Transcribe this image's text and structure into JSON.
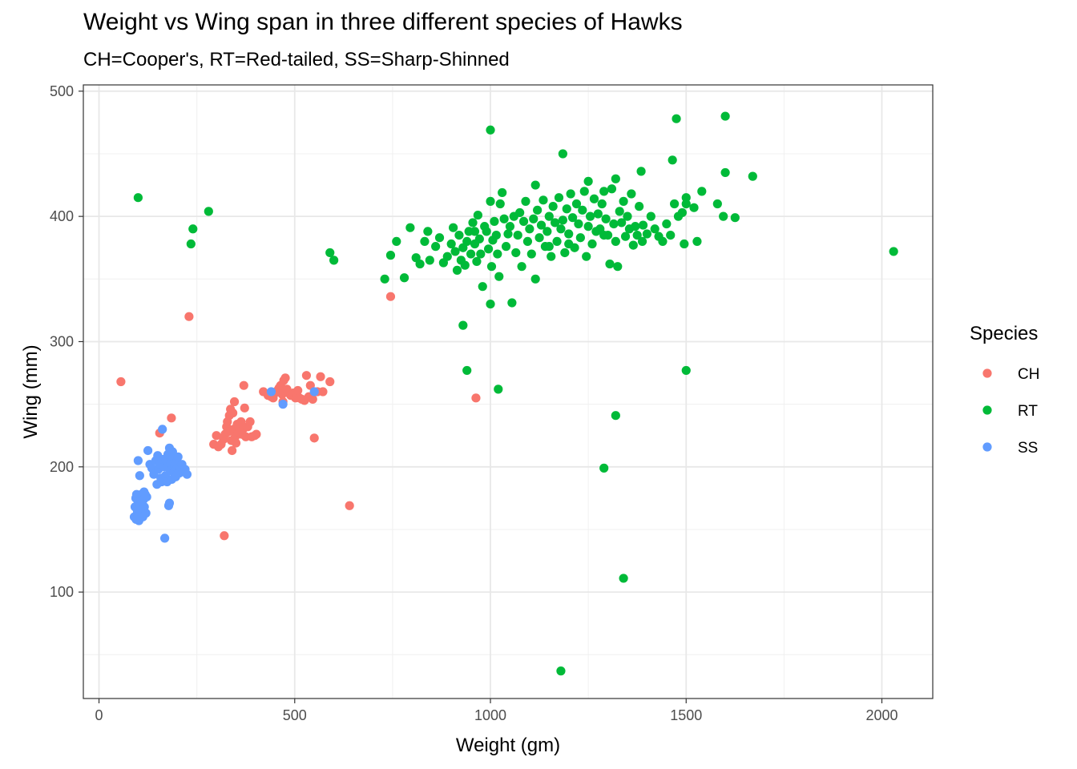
{
  "chart_data": {
    "type": "scatter",
    "title": "Weight vs Wing span in three different species of Hawks",
    "subtitle": "CH=Cooper's, RT=Red-tailed, SS=Sharp-Shinned",
    "xlabel": "Weight (gm)",
    "ylabel": "Wing (mm)",
    "xlim": [
      -40,
      2130
    ],
    "ylim": [
      15,
      505
    ],
    "x_ticks": [
      0,
      500,
      1000,
      1500,
      2000
    ],
    "y_ticks": [
      100,
      200,
      300,
      400,
      500
    ],
    "grid": true,
    "legend": {
      "title": "Species",
      "position": "right"
    },
    "series": [
      {
        "name": "CH",
        "color": "#F8766D",
        "points": [
          [
            56,
            268
          ],
          [
            230,
            320
          ],
          [
            745,
            336
          ],
          [
            963,
            255
          ],
          [
            640,
            169
          ],
          [
            320,
            145
          ],
          [
            155,
            227
          ],
          [
            185,
            239
          ],
          [
            293,
            218
          ],
          [
            300,
            225
          ],
          [
            305,
            216
          ],
          [
            312,
            218
          ],
          [
            318,
            222
          ],
          [
            322,
            226
          ],
          [
            326,
            232
          ],
          [
            328,
            236
          ],
          [
            330,
            228
          ],
          [
            333,
            241
          ],
          [
            336,
            246
          ],
          [
            338,
            221
          ],
          [
            340,
            213
          ],
          [
            342,
            243
          ],
          [
            344,
            230
          ],
          [
            346,
            252
          ],
          [
            348,
            224
          ],
          [
            350,
            219
          ],
          [
            353,
            234
          ],
          [
            356,
            228
          ],
          [
            360,
            231
          ],
          [
            363,
            236
          ],
          [
            365,
            226
          ],
          [
            368,
            230
          ],
          [
            370,
            265
          ],
          [
            372,
            247
          ],
          [
            375,
            224
          ],
          [
            380,
            232
          ],
          [
            386,
            236
          ],
          [
            390,
            224
          ],
          [
            398,
            225
          ],
          [
            402,
            226
          ],
          [
            420,
            260
          ],
          [
            432,
            257
          ],
          [
            440,
            256
          ],
          [
            445,
            255
          ],
          [
            450,
            259
          ],
          [
            456,
            261
          ],
          [
            460,
            263
          ],
          [
            464,
            265
          ],
          [
            468,
            258
          ],
          [
            470,
            252
          ],
          [
            472,
            269
          ],
          [
            476,
            271
          ],
          [
            480,
            262
          ],
          [
            484,
            259
          ],
          [
            490,
            257
          ],
          [
            496,
            259
          ],
          [
            502,
            255
          ],
          [
            505,
            258
          ],
          [
            508,
            261
          ],
          [
            512,
            255
          ],
          [
            518,
            254
          ],
          [
            525,
            253
          ],
          [
            530,
            273
          ],
          [
            536,
            256
          ],
          [
            540,
            265
          ],
          [
            546,
            254
          ],
          [
            550,
            223
          ],
          [
            558,
            260
          ],
          [
            566,
            272
          ],
          [
            572,
            260
          ],
          [
            590,
            268
          ],
          [
            358,
            228
          ]
        ]
      },
      {
        "name": "RT",
        "color": "#00BA38",
        "points": [
          [
            100,
            415
          ],
          [
            280,
            404
          ],
          [
            240,
            390
          ],
          [
            235,
            378
          ],
          [
            1000,
            469
          ],
          [
            1185,
            450
          ],
          [
            1475,
            478
          ],
          [
            1600,
            480
          ],
          [
            1115,
            425
          ],
          [
            1250,
            428
          ],
          [
            1320,
            430
          ],
          [
            1385,
            436
          ],
          [
            1465,
            445
          ],
          [
            1500,
            415
          ],
          [
            1540,
            420
          ],
          [
            1580,
            410
          ],
          [
            1600,
            435
          ],
          [
            1670,
            432
          ],
          [
            1595,
            400
          ],
          [
            1625,
            399
          ],
          [
            1528,
            380
          ],
          [
            1495,
            378
          ],
          [
            1388,
            380
          ],
          [
            2030,
            372
          ],
          [
            730,
            350
          ],
          [
            745,
            369
          ],
          [
            760,
            380
          ],
          [
            780,
            351
          ],
          [
            795,
            391
          ],
          [
            810,
            367
          ],
          [
            820,
            362
          ],
          [
            832,
            380
          ],
          [
            845,
            365
          ],
          [
            860,
            376
          ],
          [
            870,
            383
          ],
          [
            880,
            363
          ],
          [
            890,
            368
          ],
          [
            900,
            378
          ],
          [
            905,
            391
          ],
          [
            910,
            372
          ],
          [
            915,
            357
          ],
          [
            920,
            385
          ],
          [
            925,
            365
          ],
          [
            930,
            375
          ],
          [
            935,
            361
          ],
          [
            940,
            380
          ],
          [
            945,
            388
          ],
          [
            950,
            370
          ],
          [
            955,
            395
          ],
          [
            960,
            378
          ],
          [
            965,
            364
          ],
          [
            968,
            401
          ],
          [
            972,
            382
          ],
          [
            975,
            370
          ],
          [
            980,
            344
          ],
          [
            985,
            392
          ],
          [
            990,
            388
          ],
          [
            995,
            374
          ],
          [
            1000,
            412
          ],
          [
            1003,
            360
          ],
          [
            1006,
            381
          ],
          [
            1010,
            396
          ],
          [
            1015,
            385
          ],
          [
            1018,
            370
          ],
          [
            1022,
            352
          ],
          [
            1025,
            410
          ],
          [
            1030,
            419
          ],
          [
            1035,
            398
          ],
          [
            1040,
            376
          ],
          [
            1045,
            386
          ],
          [
            1050,
            392
          ],
          [
            1055,
            331
          ],
          [
            1060,
            400
          ],
          [
            1065,
            371
          ],
          [
            1070,
            385
          ],
          [
            1075,
            403
          ],
          [
            1080,
            360
          ],
          [
            1085,
            396
          ],
          [
            1090,
            412
          ],
          [
            1095,
            380
          ],
          [
            1100,
            390
          ],
          [
            1105,
            370
          ],
          [
            1110,
            398
          ],
          [
            1115,
            350
          ],
          [
            1120,
            405
          ],
          [
            1125,
            383
          ],
          [
            1130,
            393
          ],
          [
            1135,
            413
          ],
          [
            1140,
            376
          ],
          [
            1145,
            388
          ],
          [
            1150,
            400
          ],
          [
            1155,
            368
          ],
          [
            1160,
            408
          ],
          [
            1165,
            395
          ],
          [
            1170,
            380
          ],
          [
            1175,
            415
          ],
          [
            1180,
            390
          ],
          [
            1185,
            397
          ],
          [
            1190,
            371
          ],
          [
            1195,
            406
          ],
          [
            1200,
            386
          ],
          [
            1205,
            418
          ],
          [
            1210,
            399
          ],
          [
            1215,
            375
          ],
          [
            1220,
            410
          ],
          [
            1225,
            394
          ],
          [
            1230,
            383
          ],
          [
            1235,
            405
          ],
          [
            1240,
            420
          ],
          [
            1245,
            368
          ],
          [
            1250,
            392
          ],
          [
            1255,
            400
          ],
          [
            1260,
            378
          ],
          [
            1265,
            414
          ],
          [
            1270,
            388
          ],
          [
            1275,
            402
          ],
          [
            1280,
            390
          ],
          [
            1285,
            410
          ],
          [
            1290,
            420
          ],
          [
            1295,
            398
          ],
          [
            1300,
            385
          ],
          [
            1305,
            362
          ],
          [
            1310,
            422
          ],
          [
            1315,
            394
          ],
          [
            1320,
            380
          ],
          [
            1325,
            360
          ],
          [
            1330,
            404
          ],
          [
            1335,
            395
          ],
          [
            1340,
            412
          ],
          [
            1345,
            384
          ],
          [
            1350,
            400
          ],
          [
            1355,
            390
          ],
          [
            1360,
            418
          ],
          [
            1365,
            377
          ],
          [
            1370,
            392
          ],
          [
            1375,
            385
          ],
          [
            1380,
            408
          ],
          [
            1390,
            393
          ],
          [
            1400,
            386
          ],
          [
            1410,
            400
          ],
          [
            1420,
            390
          ],
          [
            1430,
            384
          ],
          [
            1440,
            380
          ],
          [
            1450,
            394
          ],
          [
            1460,
            385
          ],
          [
            1470,
            410
          ],
          [
            1480,
            400
          ],
          [
            1490,
            403
          ],
          [
            1500,
            410
          ],
          [
            1520,
            407
          ],
          [
            600,
            365
          ],
          [
            590,
            371
          ],
          [
            840,
            388
          ],
          [
            960,
            388
          ],
          [
            1150,
            376
          ],
          [
            1200,
            378
          ],
          [
            1290,
            385
          ],
          [
            930,
            313
          ],
          [
            940,
            277
          ],
          [
            1020,
            262
          ],
          [
            1000,
            330
          ],
          [
            1500,
            277
          ],
          [
            1320,
            241
          ],
          [
            1290,
            199
          ],
          [
            1340,
            111
          ],
          [
            1180,
            37
          ]
        ]
      },
      {
        "name": "SS",
        "color": "#619CFF",
        "points": [
          [
            90,
            160
          ],
          [
            92,
            168
          ],
          [
            94,
            175
          ],
          [
            96,
            178
          ],
          [
            98,
            163
          ],
          [
            100,
            205
          ],
          [
            100,
            172
          ],
          [
            102,
            157
          ],
          [
            104,
            193
          ],
          [
            106,
            170
          ],
          [
            108,
            178
          ],
          [
            110,
            165
          ],
          [
            112,
            160
          ],
          [
            114,
            174
          ],
          [
            116,
            168
          ],
          [
            118,
            178
          ],
          [
            120,
            163
          ],
          [
            122,
            176
          ],
          [
            125,
            213
          ],
          [
            130,
            202
          ],
          [
            135,
            199
          ],
          [
            140,
            194
          ],
          [
            145,
            205
          ],
          [
            148,
            186
          ],
          [
            150,
            209
          ],
          [
            152,
            198
          ],
          [
            155,
            202
          ],
          [
            158,
            191
          ],
          [
            160,
            188
          ],
          [
            162,
            230
          ],
          [
            164,
            206
          ],
          [
            166,
            200
          ],
          [
            168,
            143
          ],
          [
            170,
            193
          ],
          [
            172,
            205
          ],
          [
            174,
            188
          ],
          [
            176,
            210
          ],
          [
            178,
            169
          ],
          [
            180,
            215
          ],
          [
            182,
            197
          ],
          [
            184,
            203
          ],
          [
            186,
            190
          ],
          [
            188,
            212
          ],
          [
            190,
            208
          ],
          [
            192,
            196
          ],
          [
            194,
            201
          ],
          [
            196,
            192
          ],
          [
            198,
            204
          ],
          [
            200,
            199
          ],
          [
            202,
            208
          ],
          [
            205,
            195
          ],
          [
            208,
            200
          ],
          [
            212,
            202
          ],
          [
            215,
            196
          ],
          [
            220,
            198
          ],
          [
            225,
            194
          ],
          [
            180,
            171
          ],
          [
            440,
            260
          ],
          [
            470,
            250
          ],
          [
            550,
            260
          ],
          [
            95,
            158
          ],
          [
            98,
            165
          ],
          [
            110,
            172
          ],
          [
            115,
            180
          ]
        ]
      }
    ]
  }
}
